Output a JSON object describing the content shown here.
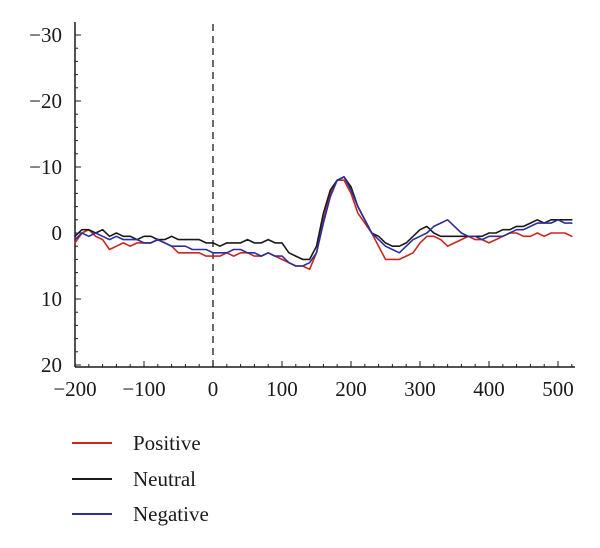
{
  "chart_data": {
    "type": "line",
    "xlim": [
      -200,
      520
    ],
    "ylim": [
      20,
      -30
    ],
    "y_inverted": true,
    "x_ticks": [
      -200,
      -100,
      0,
      100,
      200,
      300,
      400,
      500
    ],
    "x_tick_labels": [
      "−200",
      "−100",
      "0",
      "100",
      "200",
      "300",
      "400",
      "500"
    ],
    "y_ticks": [
      -30,
      -20,
      -10,
      0,
      10,
      20
    ],
    "y_tick_labels": [
      "−30",
      "−20",
      "−10",
      "0",
      "10",
      "20"
    ],
    "vertical_marker_x": 0,
    "grid": false,
    "legend_position": "bottom-left",
    "series": [
      {
        "name": "Positive",
        "color": "#c8281e",
        "x": [
          -200,
          -190,
          -180,
          -170,
          -160,
          -150,
          -140,
          -130,
          -120,
          -110,
          -100,
          -90,
          -80,
          -70,
          -60,
          -50,
          -40,
          -30,
          -20,
          -10,
          0,
          10,
          20,
          30,
          40,
          50,
          60,
          70,
          80,
          90,
          100,
          110,
          120,
          130,
          140,
          150,
          160,
          170,
          180,
          190,
          200,
          210,
          220,
          230,
          240,
          250,
          260,
          270,
          280,
          290,
          300,
          310,
          320,
          330,
          340,
          350,
          360,
          370,
          380,
          390,
          400,
          410,
          420,
          430,
          440,
          450,
          460,
          470,
          480,
          490,
          500,
          510,
          520
        ],
        "values": [
          1.5,
          0,
          -0.5,
          0.5,
          1,
          2.5,
          2,
          1.5,
          2,
          1.5,
          1.5,
          1.5,
          1,
          1.5,
          2,
          3,
          3,
          3,
          3,
          3.5,
          3.5,
          3.5,
          3,
          3.5,
          3,
          3,
          3.5,
          3.5,
          3,
          3.5,
          4,
          4.5,
          5,
          5,
          5.5,
          3,
          -2,
          -6,
          -8,
          -8,
          -6,
          -3,
          -1.5,
          0,
          2,
          4,
          4,
          4,
          3.5,
          3,
          1.5,
          0.5,
          0.5,
          1,
          2,
          1.5,
          1,
          0.5,
          1,
          1,
          1.5,
          1,
          0.5,
          0,
          0,
          0.5,
          0.5,
          0,
          0.5,
          0,
          0,
          0,
          0.5
        ]
      },
      {
        "name": "Neutral",
        "color": "#1a1a1a",
        "x": [
          -200,
          -190,
          -180,
          -170,
          -160,
          -150,
          -140,
          -130,
          -120,
          -110,
          -100,
          -90,
          -80,
          -70,
          -60,
          -50,
          -40,
          -30,
          -20,
          -10,
          0,
          10,
          20,
          30,
          40,
          50,
          60,
          70,
          80,
          90,
          100,
          110,
          120,
          130,
          140,
          150,
          160,
          170,
          180,
          190,
          200,
          210,
          220,
          230,
          240,
          250,
          260,
          270,
          280,
          290,
          300,
          310,
          320,
          330,
          340,
          350,
          360,
          370,
          380,
          390,
          400,
          410,
          420,
          430,
          440,
          450,
          460,
          470,
          480,
          490,
          500,
          510,
          520
        ],
        "values": [
          0.5,
          -0.5,
          -0.5,
          0,
          -0.5,
          0.5,
          0,
          0.5,
          0.5,
          1,
          0.5,
          0.5,
          1,
          1,
          0.5,
          1,
          1,
          1,
          1,
          1.5,
          1.5,
          2,
          1.5,
          1.5,
          1.5,
          1,
          1.5,
          1.5,
          1,
          1.5,
          1.5,
          3,
          3.5,
          4,
          4,
          2,
          -3,
          -6.5,
          -8,
          -8.5,
          -7,
          -4,
          -2,
          0,
          0.5,
          1.5,
          2,
          2,
          1.5,
          0.5,
          -0.5,
          -1,
          0,
          0.5,
          0.5,
          0.5,
          0.5,
          0.5,
          0.5,
          0.5,
          0,
          0,
          -0.5,
          -0.5,
          -1,
          -1,
          -1.5,
          -2,
          -1.5,
          -2,
          -2,
          -2,
          -2
        ]
      },
      {
        "name": "Negative",
        "color": "#2e2e9e",
        "x": [
          -200,
          -190,
          -180,
          -170,
          -160,
          -150,
          -140,
          -130,
          -120,
          -110,
          -100,
          -90,
          -80,
          -70,
          -60,
          -50,
          -40,
          -30,
          -20,
          -10,
          0,
          10,
          20,
          30,
          40,
          50,
          60,
          70,
          80,
          90,
          100,
          110,
          120,
          130,
          140,
          150,
          160,
          170,
          180,
          190,
          200,
          210,
          220,
          230,
          240,
          250,
          260,
          270,
          280,
          290,
          300,
          310,
          320,
          330,
          340,
          350,
          360,
          370,
          380,
          390,
          400,
          410,
          420,
          430,
          440,
          450,
          460,
          470,
          480,
          490,
          500,
          510,
          520
        ],
        "values": [
          1,
          0,
          0.5,
          0,
          0.5,
          1,
          0.5,
          1,
          1,
          1,
          1.5,
          1.5,
          1,
          1.5,
          2,
          2,
          2,
          2.5,
          2.5,
          2.5,
          3,
          3,
          3,
          2.5,
          2.5,
          3,
          3,
          3.5,
          3,
          3.5,
          3.5,
          4.5,
          5,
          5,
          4.5,
          3,
          -1.5,
          -5.5,
          -8,
          -8.5,
          -6.5,
          -4,
          -2,
          0,
          1,
          2,
          2.5,
          3,
          2,
          1,
          0.5,
          0,
          -1,
          -1.5,
          -2,
          -1,
          0,
          0.5,
          0.5,
          1,
          0.5,
          0.5,
          0.5,
          0,
          -0.5,
          -0.5,
          -1,
          -1.5,
          -1.5,
          -1.5,
          -2,
          -1.5,
          -1.5
        ]
      }
    ]
  }
}
